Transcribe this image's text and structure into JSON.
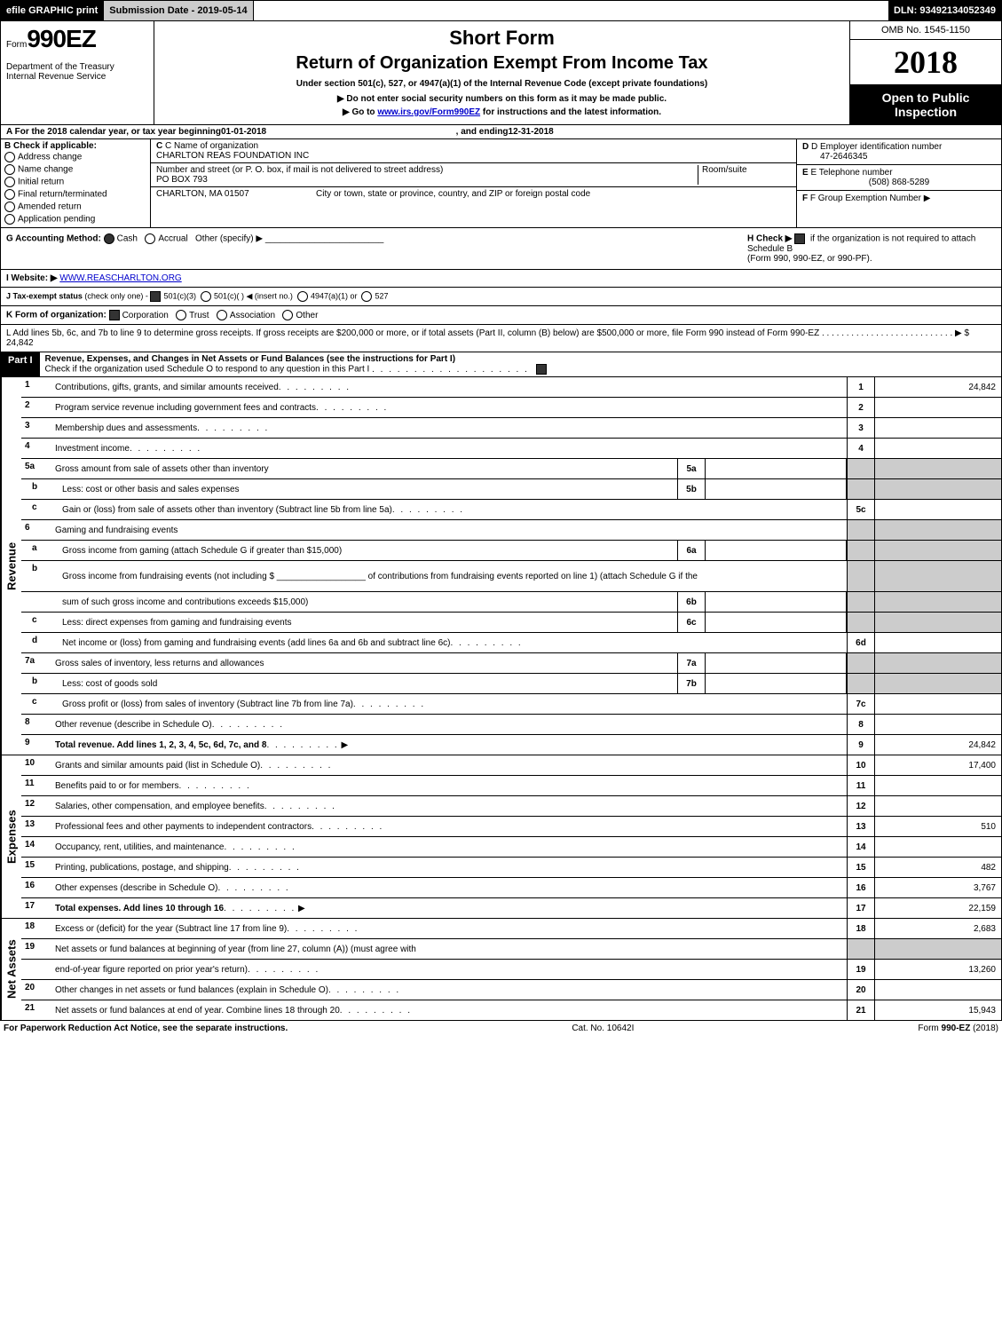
{
  "top_bar": {
    "efile": "efile GRAPHIC print",
    "submission": "Submission Date - 2019-05-14",
    "dln": "DLN: 93492134052349"
  },
  "header": {
    "form_prefix": "Form",
    "form_number": "990EZ",
    "dept1": "Department of the Treasury",
    "dept2": "Internal Revenue Service",
    "short_form": "Short Form",
    "return_title": "Return of Organization Exempt From Income Tax",
    "subtitle": "Under section 501(c), 527, or 4947(a)(1) of the Internal Revenue Code (except private foundations)",
    "arrow1": "▶ Do not enter social security numbers on this form as it may be made public.",
    "arrow2_prefix": "▶ Go to ",
    "arrow2_link": "www.irs.gov/Form990EZ",
    "arrow2_suffix": " for instructions and the latest information.",
    "omb": "OMB No. 1545-1150",
    "year": "2018",
    "open1": "Open to Public",
    "open2": "Inspection"
  },
  "line_A": {
    "prefix": "A  For the 2018 calendar year, or tax year beginning ",
    "begin": "01-01-2018",
    "mid": ", and ending ",
    "end": "12-31-2018"
  },
  "section_B": {
    "title": "B  Check if applicable:",
    "opts": [
      "Address change",
      "Name change",
      "Initial return",
      "Final return/terminated",
      "Amended return",
      "Application pending"
    ]
  },
  "section_C": {
    "label": "C Name of organization",
    "org": "CHARLTON REAS FOUNDATION INC",
    "addr_label": "Number and street (or P. O. box, if mail is not delivered to street address)",
    "addr": "PO BOX 793",
    "room_label": "Room/suite",
    "city_label": "City or town, state or province, country, and ZIP or foreign postal code",
    "city": "CHARLTON, MA  01507"
  },
  "section_D": {
    "label": "D Employer identification number",
    "value": "47-2646345"
  },
  "section_E": {
    "label": "E Telephone number",
    "value": "(508) 868-5289"
  },
  "section_F": {
    "label": "F Group Exemption Number",
    "arrow": "▶"
  },
  "line_G": {
    "label": "G Accounting Method:",
    "cash": "Cash",
    "accrual": "Accrual",
    "other": "Other (specify) ▶"
  },
  "line_H": {
    "label": "H  Check ▶",
    "text1": "if the organization is not required to attach Schedule B",
    "text2": "(Form 990, 990-EZ, or 990-PF)."
  },
  "line_I": {
    "label": "I Website: ▶",
    "value": "WWW.REASCHARLTON.ORG"
  },
  "line_J": {
    "label": "J Tax-exempt status",
    "note": "(check only one) -",
    "opt1": "501(c)(3)",
    "opt2": "501(c)(  ) ◀ (insert no.)",
    "opt3": "4947(a)(1) or",
    "opt4": "527"
  },
  "line_K": {
    "label": "K Form of organization:",
    "opts": [
      "Corporation",
      "Trust",
      "Association",
      "Other"
    ]
  },
  "line_L": {
    "text": "L Add lines 5b, 6c, and 7b to line 9 to determine gross receipts. If gross receipts are $200,000 or more, or if total assets (Part II, column (B) below) are $500,000 or more, file Form 990 instead of Form 990-EZ",
    "dots": " .  .  .  .  .  .  .  .  .  .  .  .  .  .  .  .  .  .  .  .  .  .  .  .  .  .  . ▶ ",
    "value": "$ 24,842"
  },
  "part1": {
    "label": "Part I",
    "title": "Revenue, Expenses, and Changes in Net Assets or Fund Balances (see the instructions for Part I)",
    "check_line": "Check if the organization used Schedule O to respond to any question in this Part I"
  },
  "vert_labels": {
    "revenue": "Revenue",
    "expenses": "Expenses",
    "netassets": "Net Assets"
  },
  "revenue_rows": [
    {
      "n": "1",
      "desc": "Contributions, gifts, grants, and similar amounts received",
      "rn": "1",
      "rv": "24,842"
    },
    {
      "n": "2",
      "desc": "Program service revenue including government fees and contracts",
      "rn": "2",
      "rv": ""
    },
    {
      "n": "3",
      "desc": "Membership dues and assessments",
      "rn": "3",
      "rv": ""
    },
    {
      "n": "4",
      "desc": "Investment income",
      "rn": "4",
      "rv": ""
    },
    {
      "n": "5a",
      "desc": "Gross amount from sale of assets other than inventory",
      "mid_n": "5a",
      "mid_v": "",
      "grey_right": true,
      "sub": false
    },
    {
      "n": "b",
      "desc": "Less: cost or other basis and sales expenses",
      "mid_n": "5b",
      "mid_v": "",
      "grey_right": true,
      "sub": true
    },
    {
      "n": "c",
      "desc": "Gain or (loss) from sale of assets other than inventory (Subtract line 5b from line 5a)",
      "rn": "5c",
      "rv": "",
      "sub": true
    },
    {
      "n": "6",
      "desc": "Gaming and fundraising events",
      "grey_right": true,
      "no_rn": true
    },
    {
      "n": "a",
      "desc": "Gross income from gaming (attach Schedule G if greater than $15,000)",
      "mid_n": "6a",
      "mid_v": "",
      "grey_right": true,
      "sub": true
    },
    {
      "n": "b",
      "desc": "Gross income from fundraising events (not including $ __________________ of contributions from fundraising events reported on line 1) (attach Schedule G if the",
      "grey_right": true,
      "no_rn": true,
      "sub": true,
      "tall": true
    },
    {
      "n": "",
      "desc": "sum of such gross income and contributions exceeds $15,000)",
      "mid_n": "6b",
      "mid_v": "",
      "grey_right": true,
      "sub": true
    },
    {
      "n": "c",
      "desc": "Less: direct expenses from gaming and fundraising events",
      "mid_n": "6c",
      "mid_v": "",
      "grey_right": true,
      "sub": true
    },
    {
      "n": "d",
      "desc": "Net income or (loss) from gaming and fundraising events (add lines 6a and 6b and subtract line 6c)",
      "rn": "6d",
      "rv": "",
      "sub": true
    },
    {
      "n": "7a",
      "desc": "Gross sales of inventory, less returns and allowances",
      "mid_n": "7a",
      "mid_v": "",
      "grey_right": true
    },
    {
      "n": "b",
      "desc": "Less: cost of goods sold",
      "mid_n": "7b",
      "mid_v": "",
      "grey_right": true,
      "sub": true
    },
    {
      "n": "c",
      "desc": "Gross profit or (loss) from sales of inventory (Subtract line 7b from line 7a)",
      "rn": "7c",
      "rv": "",
      "sub": true
    },
    {
      "n": "8",
      "desc": "Other revenue (describe in Schedule O)",
      "rn": "8",
      "rv": ""
    },
    {
      "n": "9",
      "desc": "Total revenue. Add lines 1, 2, 3, 4, 5c, 6d, 7c, and 8",
      "rn": "9",
      "rv": "24,842",
      "bold": true,
      "arrow": true
    }
  ],
  "expense_rows": [
    {
      "n": "10",
      "desc": "Grants and similar amounts paid (list in Schedule O)",
      "rn": "10",
      "rv": "17,400"
    },
    {
      "n": "11",
      "desc": "Benefits paid to or for members",
      "rn": "11",
      "rv": ""
    },
    {
      "n": "12",
      "desc": "Salaries, other compensation, and employee benefits",
      "rn": "12",
      "rv": ""
    },
    {
      "n": "13",
      "desc": "Professional fees and other payments to independent contractors",
      "rn": "13",
      "rv": "510"
    },
    {
      "n": "14",
      "desc": "Occupancy, rent, utilities, and maintenance",
      "rn": "14",
      "rv": ""
    },
    {
      "n": "15",
      "desc": "Printing, publications, postage, and shipping",
      "rn": "15",
      "rv": "482"
    },
    {
      "n": "16",
      "desc": "Other expenses (describe in Schedule O)",
      "rn": "16",
      "rv": "3,767"
    },
    {
      "n": "17",
      "desc": "Total expenses. Add lines 10 through 16",
      "rn": "17",
      "rv": "22,159",
      "bold": true,
      "arrow": true
    }
  ],
  "netasset_rows": [
    {
      "n": "18",
      "desc": "Excess or (deficit) for the year (Subtract line 17 from line 9)",
      "rn": "18",
      "rv": "2,683"
    },
    {
      "n": "19",
      "desc": "Net assets or fund balances at beginning of year (from line 27, column (A)) (must agree with",
      "grey_right": true,
      "no_rn": true
    },
    {
      "n": "",
      "desc": "end-of-year figure reported on prior year's return)",
      "rn": "19",
      "rv": "13,260"
    },
    {
      "n": "20",
      "desc": "Other changes in net assets or fund balances (explain in Schedule O)",
      "rn": "20",
      "rv": ""
    },
    {
      "n": "21",
      "desc": "Net assets or fund balances at end of year. Combine lines 18 through 20",
      "rn": "21",
      "rv": "15,943"
    }
  ],
  "footer": {
    "left": "For Paperwork Reduction Act Notice, see the separate instructions.",
    "mid": "Cat. No. 10642I",
    "right": "Form 990-EZ (2018)"
  }
}
